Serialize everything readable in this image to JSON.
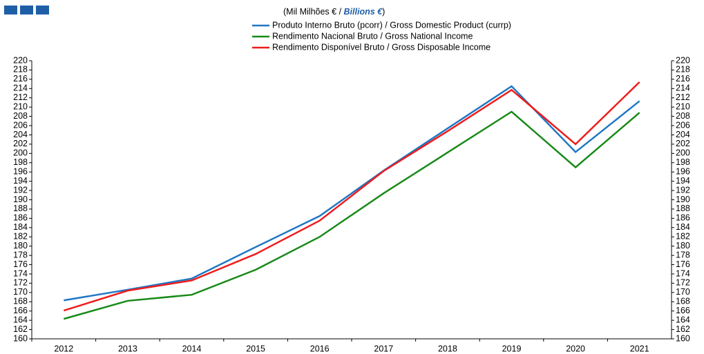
{
  "chart_data": {
    "type": "line",
    "title_parts": [
      "(Mil Milhões  € / ",
      "Billions €",
      ")"
    ],
    "categories": [
      "2012",
      "2013",
      "2014",
      "2015",
      "2016",
      "2017",
      "2018",
      "2019",
      "2020",
      "2021"
    ],
    "series": [
      {
        "name": "Produto Interno Bruto (pcorr) / Gross Domestic Product (currp)",
        "color": "#1f77c4",
        "values": [
          168.3,
          170.6,
          173.0,
          179.8,
          186.5,
          196.3,
          205.4,
          214.5,
          200.3,
          211.3
        ]
      },
      {
        "name": "Rendimento Nacional Bruto / Gross National Income",
        "color": "#178a17",
        "values": [
          164.3,
          168.2,
          169.5,
          174.9,
          182.0,
          191.4,
          200.2,
          209.0,
          197.0,
          208.8
        ]
      },
      {
        "name": "Rendimento Disponível Bruto / Gross Disposable Income",
        "color": "#ee1c1c",
        "values": [
          166.1,
          170.4,
          172.6,
          178.3,
          185.5,
          196.2,
          204.8,
          213.7,
          202.0,
          215.4
        ]
      }
    ],
    "ylim": [
      160,
      220
    ],
    "yticks": [
      160,
      162,
      164,
      166,
      168,
      170,
      172,
      174,
      176,
      178,
      180,
      182,
      184,
      186,
      188,
      190,
      192,
      194,
      196,
      198,
      200,
      202,
      204,
      206,
      208,
      210,
      212,
      214,
      216,
      218,
      220
    ],
    "grid": false
  }
}
